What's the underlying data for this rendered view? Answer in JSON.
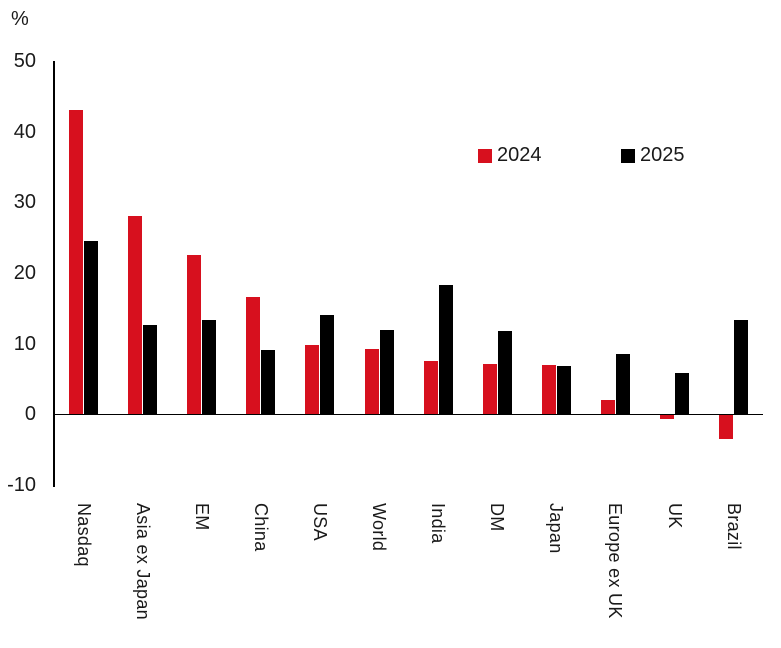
{
  "chart": {
    "unit_label": "%"
  },
  "chart_data": {
    "type": "bar",
    "title": "",
    "xlabel": "",
    "ylabel": "%",
    "ylim": [
      -10,
      50
    ],
    "yticks": [
      50,
      40,
      30,
      20,
      10,
      0,
      -10
    ],
    "grid": false,
    "legend_position": "upper-right-inside",
    "categories": [
      "Nasdaq",
      "Asia ex Japan",
      "EM",
      "China",
      "USA",
      "World",
      "India",
      "DM",
      "Japan",
      "Europe ex UK",
      "UK",
      "Brazil"
    ],
    "series": [
      {
        "name": "2024",
        "color": "#d7101e",
        "values": [
          43.0,
          28.0,
          22.6,
          16.6,
          9.8,
          9.2,
          7.5,
          7.1,
          7.0,
          2.0,
          -0.7,
          -3.5
        ]
      },
      {
        "name": "2025",
        "color": "#000000",
        "values": [
          24.5,
          12.7,
          13.3,
          9.1,
          14.1,
          12.0,
          18.3,
          11.8,
          6.8,
          8.6,
          5.8,
          13.3
        ]
      }
    ]
  }
}
